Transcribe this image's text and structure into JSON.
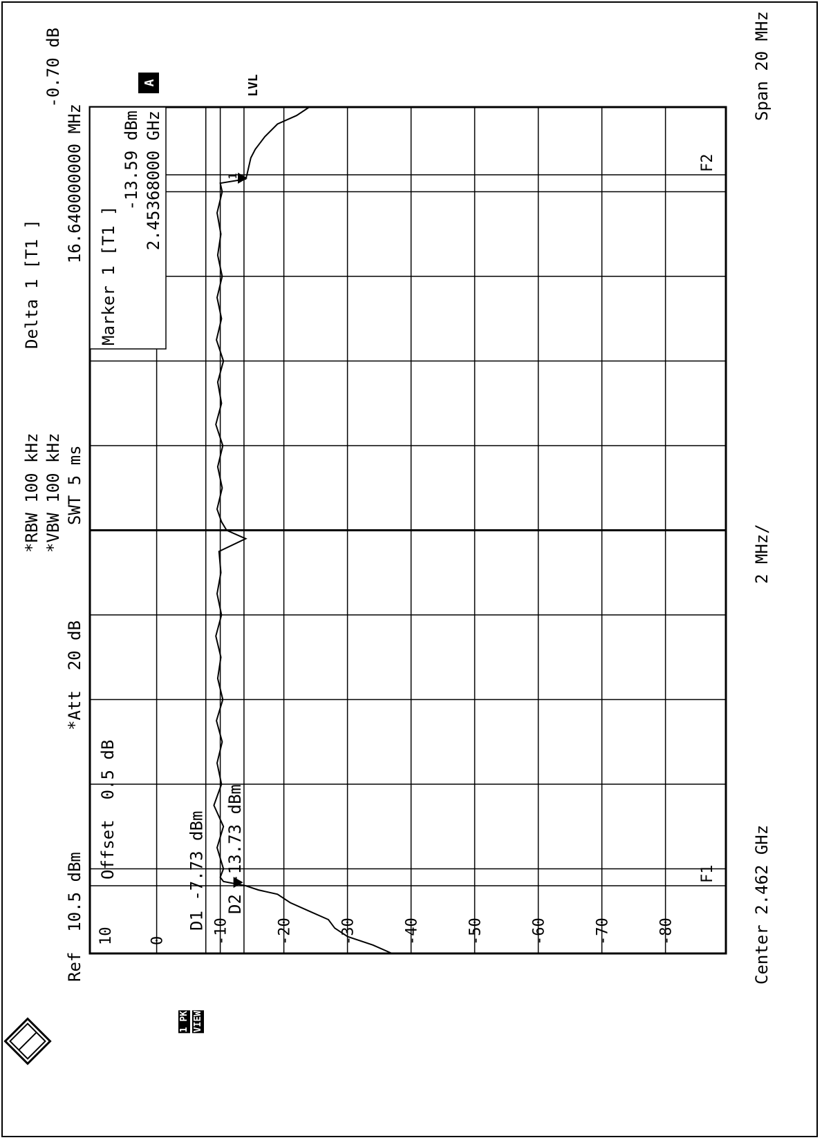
{
  "header": {
    "rbw": "*RBW 100 kHz",
    "vbw": "*VBW 100 kHz",
    "swt": "SWT 5 ms",
    "delta_title": "Delta 1 [T1 ]",
    "delta_level": "-0.70 dB",
    "delta_freq": "16.640000000 MHz",
    "ref": "Ref  10.5 dBm",
    "att": "*Att  20 dB",
    "offset": "Offset  0.5 dB"
  },
  "marker_box": {
    "title": "Marker 1 [T1 ]",
    "level": "-13.59 dBm",
    "freq": "2.45368000 GHz"
  },
  "footer": {
    "center": "Center 2.462 GHz",
    "per_div": "2 MHz/",
    "span": "Span 20 MHz"
  },
  "side_labels": {
    "trace_mode": "1 PK",
    "view": "VIEW",
    "channel": "A",
    "lvl": "LVL",
    "top_tick": "10"
  },
  "lines": {
    "d1": "D1 -7.73 dBm",
    "d2": "D2 -13.73 dBm",
    "f1": "F1",
    "f2": "F2",
    "marker_num": "1"
  },
  "chart_data": {
    "type": "line",
    "title": "",
    "xlabel": "",
    "ylabel": "",
    "x_unit": "GHz",
    "y_unit": "dBm",
    "xlim": [
      2.452,
      2.472
    ],
    "ylim": [
      -89.5,
      10.5
    ],
    "y_ticks": [
      0,
      -10,
      -20,
      -30,
      -40,
      -50,
      -60,
      -70,
      -80
    ],
    "y_tick_labels": [
      "0",
      "-10",
      "-20",
      "-30",
      "-40",
      "-50",
      "-60",
      "-70",
      "-80"
    ],
    "grid": true,
    "reference_lines": [
      {
        "name": "D1",
        "level": -7.73
      },
      {
        "name": "D2",
        "level": -13.73
      }
    ],
    "frequency_lines": [
      {
        "name": "F1",
        "freq": 2.4536
      },
      {
        "name": "F2",
        "freq": 2.4704
      }
    ],
    "markers": [
      {
        "name": "Marker 1 [T1]",
        "freq": 2.45368,
        "level": -13.59
      },
      {
        "name": "Delta 1 [T1]",
        "freq": 2.47032,
        "level": -14.29
      }
    ],
    "series": [
      {
        "x": [
          2.452,
          2.4522,
          2.4524,
          2.4526,
          2.4528,
          2.453,
          2.4532,
          2.4534,
          2.4535,
          2.4536,
          2.4537,
          2.4538,
          2.454,
          2.4545,
          2.455,
          2.4555,
          2.456,
          2.4565,
          2.457,
          2.4575,
          2.458,
          2.4585,
          2.459,
          2.4595,
          2.46,
          2.4605,
          2.461,
          2.4615,
          2.4618,
          2.462,
          2.4622,
          2.4625,
          2.463,
          2.4635,
          2.464,
          2.4645,
          2.465,
          2.4655,
          2.466,
          2.4665,
          2.467,
          2.4675,
          2.468,
          2.4685,
          2.469,
          2.4695,
          2.47,
          2.4702,
          2.4703,
          2.4704,
          2.4706,
          2.4708,
          2.471,
          2.4713,
          2.4716,
          2.4718,
          2.472
        ],
        "y": [
          -37,
          -34,
          -30,
          -28,
          -27,
          -24,
          -21,
          -19,
          -16,
          -14,
          -10.5,
          -10,
          -10.5,
          -9.5,
          -10.5,
          -9,
          -10.2,
          -9.5,
          -10.3,
          -9.4,
          -10.4,
          -9.6,
          -10.1,
          -9.3,
          -10.2,
          -9.5,
          -10.1,
          -9.8,
          -14,
          -11,
          -10.2,
          -9.5,
          -10.3,
          -9.6,
          -10.4,
          -9.3,
          -10.2,
          -9.6,
          -10.5,
          -9.4,
          -10.2,
          -9.5,
          -10.3,
          -9.6,
          -10.1,
          -9.5,
          -10.3,
          -10,
          -14,
          -14.2,
          -14.5,
          -14.8,
          -15.5,
          -17,
          -19,
          -22,
          -24
        ]
      }
    ]
  }
}
